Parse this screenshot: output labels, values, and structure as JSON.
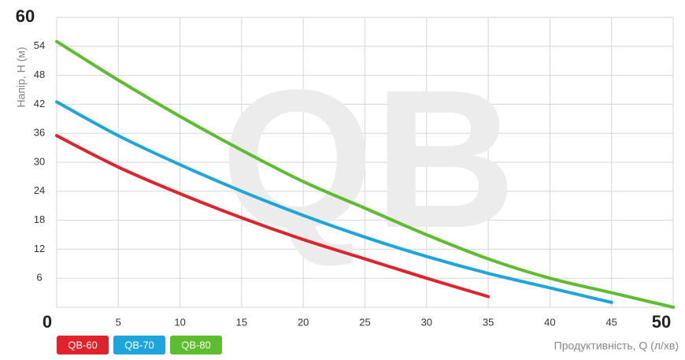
{
  "chart_data": {
    "type": "line",
    "watermark": "QB",
    "y_label": "Напір, Н (м)",
    "x_label": "Продуктивність, Q (л/хв)",
    "x": [
      0,
      5,
      10,
      15,
      20,
      25,
      30,
      35,
      40,
      45,
      50
    ],
    "series": [
      {
        "name": "QB-60",
        "color": "#e0232b",
        "values": [
          35.5,
          29,
          23.5,
          18.5,
          14,
          10,
          6,
          2.2,
          null,
          null,
          null
        ]
      },
      {
        "name": "QB-70",
        "color": "#1ea6dc",
        "values": [
          42.5,
          35.5,
          29.5,
          24,
          19,
          14.5,
          10.5,
          7,
          4,
          1,
          null
        ]
      },
      {
        "name": "QB-80",
        "color": "#5cbd2f",
        "values": [
          55,
          47,
          39.5,
          32.5,
          26,
          20.5,
          15,
          10,
          6,
          3,
          0
        ]
      }
    ],
    "xlim": [
      0,
      50
    ],
    "xticks": [
      0,
      5,
      10,
      15,
      20,
      25,
      30,
      35,
      40,
      45,
      50
    ],
    "ylim": [
      0,
      60
    ],
    "yticks": [
      0,
      6,
      12,
      18,
      24,
      30,
      36,
      42,
      48,
      54,
      60
    ],
    "grid": true
  }
}
